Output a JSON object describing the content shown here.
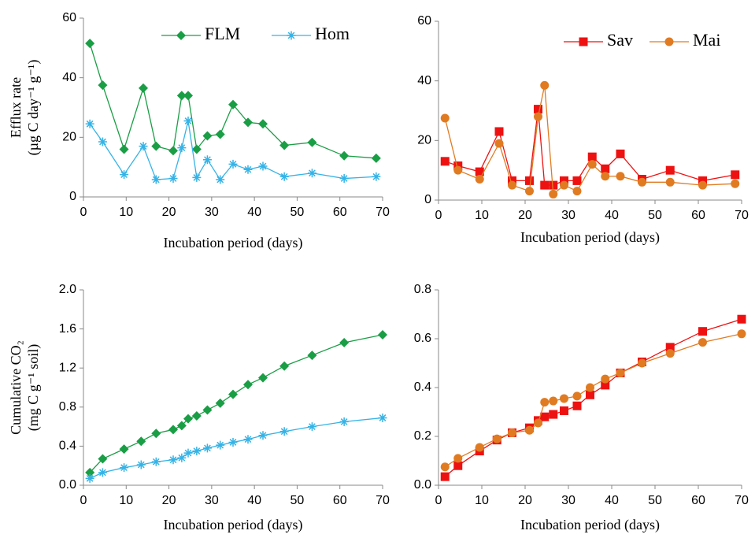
{
  "chart_data": [
    {
      "type": "line",
      "ylabel": [
        "Efflux rate",
        "(µg C day⁻¹ g⁻¹)"
      ],
      "xlabel": "Incubation period (days)",
      "x": [
        1.5,
        4.5,
        9.5,
        14,
        17,
        21,
        23,
        24.5,
        26.5,
        29,
        32,
        35,
        38.5,
        42,
        47,
        53.5,
        61,
        68.5
      ],
      "series": [
        {
          "name": "FLM",
          "color": "#1a9e45",
          "marker": "diamond",
          "values": [
            51.5,
            37.5,
            16,
            36.5,
            17,
            15.5,
            34,
            34,
            16,
            20.5,
            21,
            31,
            25,
            24.5,
            17.3,
            18.3,
            13.8,
            13
          ]
        },
        {
          "name": "Hom",
          "color": "#35b3e6",
          "marker": "asterisk",
          "values": [
            24.5,
            18.5,
            7.5,
            17,
            5.8,
            6.2,
            16.5,
            25.5,
            6.5,
            12.5,
            5.8,
            11,
            9.2,
            10.3,
            6.8,
            8,
            6.2,
            6.8
          ]
        }
      ],
      "xlim": [
        0,
        70
      ],
      "ylim": [
        0,
        60
      ],
      "xticks": [
        0,
        10,
        20,
        30,
        40,
        50,
        60,
        70
      ],
      "yticks": [
        0,
        20,
        40,
        60
      ],
      "legend": "top"
    },
    {
      "type": "line",
      "xlabel": "Incubation period (days)",
      "x": [
        1.5,
        4.5,
        9.5,
        14,
        17,
        21,
        23,
        24.5,
        26.5,
        29,
        32,
        35.5,
        38.5,
        42,
        47,
        53.5,
        61,
        68.5
      ],
      "series": [
        {
          "name": "Sav",
          "color": "#ee1111",
          "marker": "square",
          "values": [
            13,
            11.5,
            9.5,
            23,
            6.5,
            6.5,
            30.5,
            5,
            5,
            6.5,
            6.5,
            14.5,
            10.5,
            15.5,
            7,
            10,
            6.5,
            8.5
          ]
        },
        {
          "name": "Mai",
          "color": "#e07b22",
          "marker": "circle",
          "values": [
            27.5,
            10,
            7,
            19,
            5,
            3,
            28,
            38.5,
            2,
            5,
            3,
            12,
            8,
            8,
            6,
            6,
            5,
            5.5
          ]
        }
      ],
      "xlim": [
        0,
        70
      ],
      "ylim": [
        0,
        60
      ],
      "xticks": [
        0,
        10,
        20,
        30,
        40,
        50,
        60,
        70
      ],
      "yticks": [
        0,
        20,
        40,
        60
      ],
      "legend": "top"
    },
    {
      "type": "line",
      "ylabel": [
        "Cumulative CO₂",
        "(mg C g⁻¹ soil)"
      ],
      "xlabel": "Incubation period (days)",
      "x": [
        1.5,
        4.5,
        9.5,
        13.5,
        17,
        21,
        23,
        24.5,
        26.5,
        29,
        32,
        35,
        38.5,
        42,
        47,
        53.5,
        61,
        70
      ],
      "series": [
        {
          "color": "#1a9e45",
          "marker": "diamond",
          "values": [
            0.13,
            0.27,
            0.37,
            0.45,
            0.53,
            0.57,
            0.61,
            0.68,
            0.71,
            0.77,
            0.84,
            0.93,
            1.03,
            1.1,
            1.22,
            1.33,
            1.46,
            1.54
          ]
        },
        {
          "color": "#35b3e6",
          "marker": "asterisk",
          "values": [
            0.07,
            0.13,
            0.18,
            0.21,
            0.24,
            0.26,
            0.28,
            0.33,
            0.35,
            0.38,
            0.41,
            0.44,
            0.47,
            0.51,
            0.55,
            0.6,
            0.65,
            0.69
          ]
        }
      ],
      "xlim": [
        0,
        70
      ],
      "ylim": [
        0,
        2
      ],
      "xticks": [
        0,
        10,
        20,
        30,
        40,
        50,
        60,
        70
      ],
      "yticks": [
        {
          "value": 0,
          "label": "0.0"
        },
        {
          "value": 0.4,
          "label": "0.4"
        },
        {
          "value": 0.8,
          "label": "0.8"
        },
        {
          "value": 1.2,
          "label": "1.2"
        },
        {
          "value": 1.6,
          "label": "1.6"
        },
        {
          "value": 2,
          "label": "2.0"
        }
      ]
    },
    {
      "type": "line",
      "xlabel": "Incubation period (days)",
      "x": [
        1.5,
        4.5,
        9.5,
        13.5,
        17,
        21,
        23,
        24.5,
        26.5,
        29,
        32,
        35,
        38.5,
        42,
        47,
        53.5,
        61,
        70
      ],
      "series": [
        {
          "color": "#ee1111",
          "marker": "square",
          "values": [
            0.035,
            0.08,
            0.14,
            0.185,
            0.215,
            0.235,
            0.265,
            0.28,
            0.29,
            0.305,
            0.325,
            0.37,
            0.41,
            0.46,
            0.505,
            0.565,
            0.63,
            0.68
          ]
        },
        {
          "color": "#e07b22",
          "marker": "circle",
          "values": [
            0.075,
            0.11,
            0.155,
            0.19,
            0.215,
            0.225,
            0.255,
            0.34,
            0.345,
            0.355,
            0.365,
            0.4,
            0.435,
            0.46,
            0.5,
            0.54,
            0.585,
            0.62
          ]
        }
      ],
      "xlim": [
        0,
        70
      ],
      "ylim": [
        0,
        0.8
      ],
      "xticks": [
        0,
        10,
        20,
        30,
        40,
        50,
        60,
        70
      ],
      "yticks": [
        {
          "value": 0,
          "label": "0.0"
        },
        {
          "value": 0.2,
          "label": "0.2"
        },
        {
          "value": 0.4,
          "label": "0.4"
        },
        {
          "value": 0.6,
          "label": "0.6"
        },
        {
          "value": 0.8,
          "label": "0.8"
        }
      ]
    }
  ]
}
